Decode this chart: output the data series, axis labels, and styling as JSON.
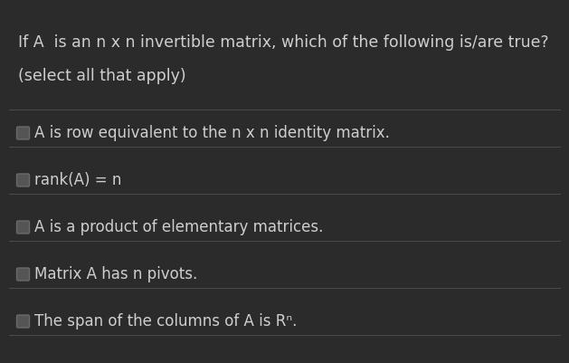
{
  "bg_color": "#2b2b2b",
  "text_color": "#d0cece",
  "line_color": "#4a4a4a",
  "title_line1": "If A  is an n x n invertible matrix, which of the following is/are true?",
  "title_line2": "(select all that apply)",
  "options": [
    "A is row equivalent to the n x n identity matrix.",
    "rank(A) = n",
    "A is a product of elementary matrices.",
    "Matrix A has n pivots.",
    "The span of the columns of A is Rⁿ."
  ],
  "checkbox_fill": "#555555",
  "checkbox_edge": "#6a6a6a",
  "font_size_title": 12.5,
  "font_size_subtitle": 12.5,
  "font_size_options": 12.0,
  "fig_width": 6.29,
  "fig_height": 4.02,
  "dpi": 100
}
